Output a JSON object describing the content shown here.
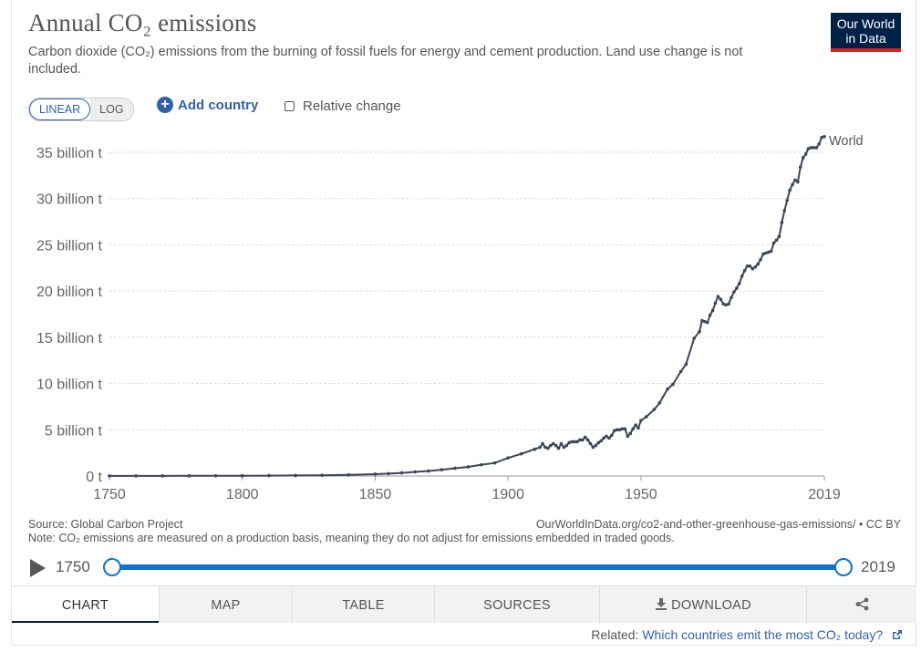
{
  "header": {
    "title": "Annual CO₂ emissions",
    "subtitle": "Carbon dioxide (CO₂) emissions from the burning of fossil fuels for energy and cement production. Land use change is not included."
  },
  "logo": {
    "line1": "Our World",
    "line2": "in Data",
    "bg_color": "#002147",
    "bar_color": "#ce261e"
  },
  "controls": {
    "scale_linear": "LINEAR",
    "scale_log": "LOG",
    "add_country": "Add country",
    "relative_change": "Relative change"
  },
  "chart_data": {
    "type": "line",
    "series": [
      {
        "name": "World",
        "color": "#3b4659",
        "x": [
          1750,
          1760,
          1770,
          1780,
          1790,
          1800,
          1810,
          1820,
          1830,
          1840,
          1850,
          1855,
          1860,
          1865,
          1870,
          1875,
          1880,
          1885,
          1890,
          1895,
          1900,
          1905,
          1910,
          1912,
          1913,
          1914,
          1915,
          1916,
          1917,
          1918,
          1919,
          1920,
          1921,
          1922,
          1923,
          1924,
          1925,
          1926,
          1927,
          1928,
          1929,
          1930,
          1931,
          1932,
          1933,
          1934,
          1935,
          1936,
          1937,
          1938,
          1939,
          1940,
          1941,
          1942,
          1943,
          1944,
          1945,
          1946,
          1947,
          1948,
          1949,
          1950,
          1952,
          1955,
          1957,
          1960,
          1962,
          1965,
          1967,
          1970,
          1972,
          1973,
          1974,
          1975,
          1976,
          1977,
          1978,
          1979,
          1980,
          1981,
          1982,
          1983,
          1984,
          1985,
          1986,
          1987,
          1988,
          1989,
          1990,
          1991,
          1992,
          1993,
          1994,
          1995,
          1996,
          1997,
          1998,
          1999,
          2000,
          2001,
          2002,
          2003,
          2004,
          2005,
          2006,
          2007,
          2008,
          2009,
          2010,
          2011,
          2012,
          2013,
          2014,
          2015,
          2016,
          2017,
          2018,
          2019
        ],
        "y": [
          0.009,
          0.01,
          0.012,
          0.015,
          0.02,
          0.029,
          0.04,
          0.055,
          0.08,
          0.12,
          0.2,
          0.26,
          0.34,
          0.44,
          0.54,
          0.68,
          0.84,
          0.99,
          1.22,
          1.41,
          1.95,
          2.4,
          2.9,
          3.1,
          3.5,
          3.1,
          3.0,
          3.3,
          3.5,
          3.3,
          3.0,
          3.5,
          3.1,
          3.3,
          3.6,
          3.7,
          3.7,
          3.7,
          3.9,
          3.9,
          4.2,
          3.9,
          3.5,
          3.1,
          3.3,
          3.6,
          3.8,
          4.1,
          4.3,
          4.1,
          4.4,
          4.9,
          5.0,
          5.0,
          5.1,
          5.1,
          4.3,
          4.6,
          5.1,
          5.5,
          5.2,
          6.0,
          6.4,
          7.2,
          7.9,
          9.4,
          9.9,
          11.3,
          12.1,
          14.9,
          15.6,
          16.8,
          16.7,
          16.6,
          17.4,
          17.9,
          18.7,
          19.4,
          19.1,
          18.6,
          18.5,
          18.6,
          19.3,
          19.9,
          20.3,
          20.8,
          21.6,
          22.2,
          22.7,
          22.7,
          22.4,
          22.6,
          22.9,
          23.4,
          24.0,
          24.1,
          24.2,
          24.3,
          25.2,
          25.5,
          25.9,
          27.4,
          28.7,
          29.8,
          30.9,
          31.5,
          32.0,
          31.8,
          33.4,
          34.4,
          34.8,
          35.4,
          35.5,
          35.5,
          35.5,
          35.9,
          36.6,
          36.7
        ]
      }
    ],
    "ylabel": "",
    "xlabel": "",
    "xlim": [
      1750,
      2019
    ],
    "ylim": [
      0,
      35
    ],
    "x_ticks": [
      "1750",
      "1800",
      "1850",
      "1900",
      "1950",
      "2019"
    ],
    "y_ticks": [
      "0 t",
      "5 billion t",
      "10 billion t",
      "15 billion t",
      "20 billion t",
      "25 billion t",
      "30 billion t",
      "35 billion t"
    ],
    "y_tick_values": [
      0,
      5,
      10,
      15,
      20,
      25,
      30,
      35
    ],
    "x_tick_values": [
      1750,
      1800,
      1850,
      1900,
      1950,
      2019
    ],
    "grid": true,
    "legend": "inline-end"
  },
  "footer": {
    "source": "Source: Global Carbon Project",
    "note": "Note: CO₂ emissions are measured on a production basis, meaning they do not adjust for emissions embedded in traded goods.",
    "url": "OurWorldInData.org/co2-and-other-greenhouse-gas-emissions/ • CC BY"
  },
  "timeline": {
    "start": "1750",
    "end": "2019",
    "color": "#0e72ce"
  },
  "tabs": [
    "CHART",
    "MAP",
    "TABLE",
    "SOURCES",
    "DOWNLOAD"
  ],
  "related": {
    "prefix": "Related:",
    "link": "Which countries emit the most CO₂ today?"
  },
  "icons": {
    "share": "share-icon",
    "download": "download-icon",
    "play": "play-icon",
    "add": "plus-icon",
    "external": "external-link-icon"
  }
}
